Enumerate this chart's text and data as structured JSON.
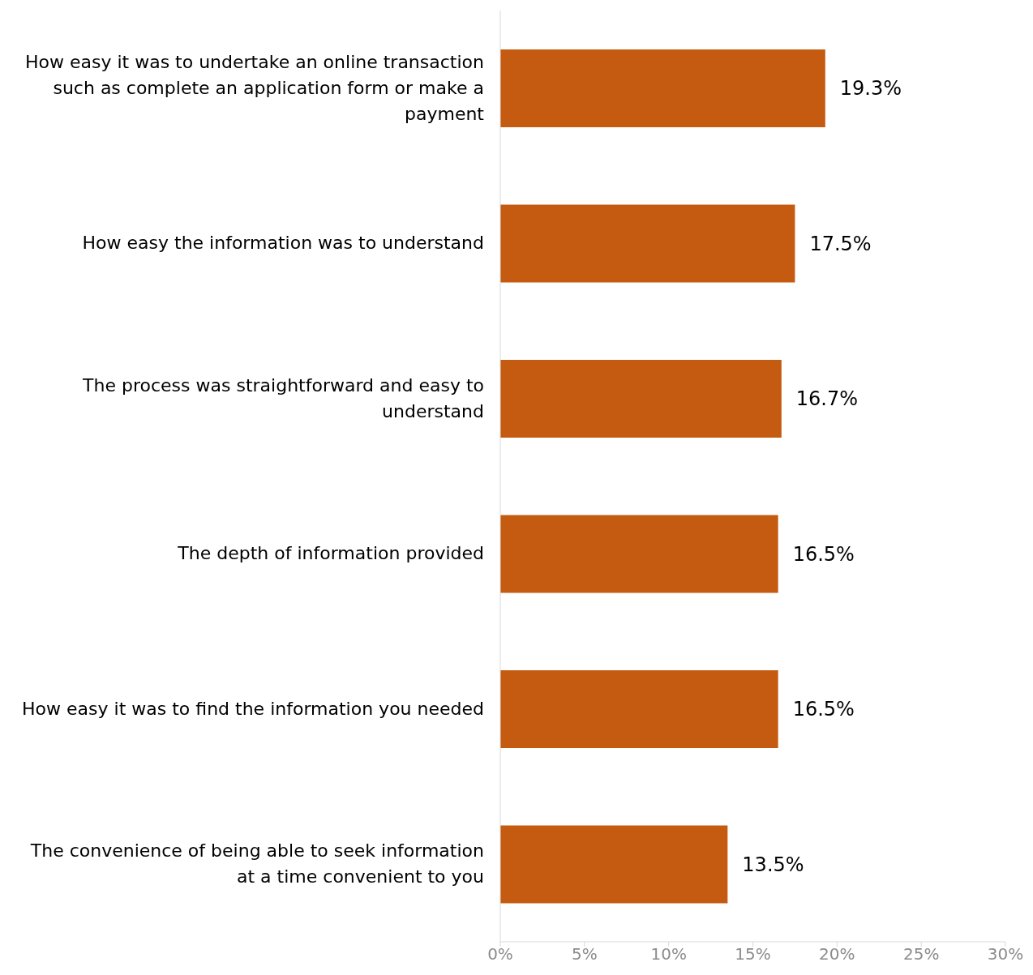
{
  "chart_data": {
    "type": "bar",
    "orientation": "horizontal",
    "categories": [
      "How easy it was to undertake an online transaction such as complete an application form or make a payment",
      "How easy the information was to understand",
      "The process was straightforward and easy to understand",
      "The depth of information provided",
      "How easy it was to find the information you needed",
      "The convenience of being able to seek information at a time convenient to you"
    ],
    "values": [
      19.3,
      17.5,
      16.7,
      16.5,
      16.5,
      13.5
    ],
    "value_labels": [
      "19.3%",
      "17.5%",
      "16.7%",
      "16.5%",
      "16.5%",
      "13.5%"
    ],
    "color": "#c55a11",
    "xlim": [
      0,
      30
    ],
    "xticks": [
      {
        "value": 0,
        "label": "0%"
      },
      {
        "value": 5,
        "label": "5%"
      },
      {
        "value": 10,
        "label": "10%"
      },
      {
        "value": 15,
        "label": "15%"
      },
      {
        "value": 20,
        "label": "20%"
      },
      {
        "value": 25,
        "label": "25%"
      },
      {
        "value": 30,
        "label": "30%"
      }
    ],
    "grid": false,
    "legend": false
  }
}
